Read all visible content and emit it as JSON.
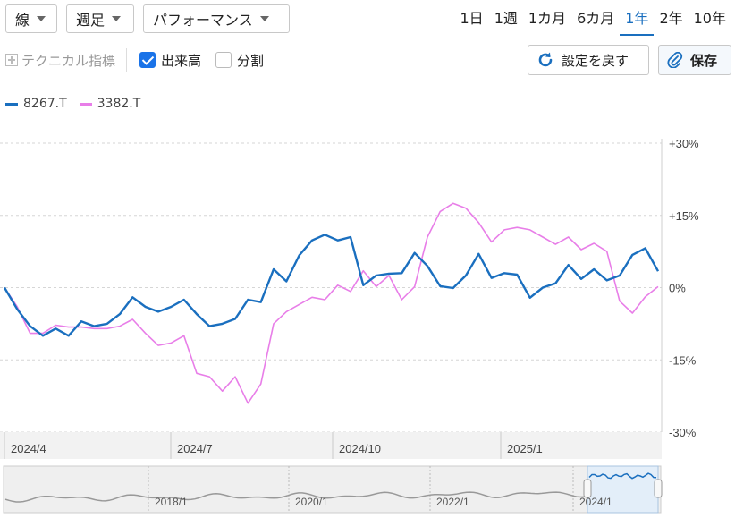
{
  "toolbar": {
    "chart_type": "線",
    "interval": "週足",
    "mode": "パフォーマンス",
    "periods": [
      "1日",
      "1週",
      "1カ月",
      "6カ月",
      "1年",
      "2年",
      "10年"
    ],
    "active_period": "1年"
  },
  "options": {
    "technical_label": "テクニカル指標",
    "volume_label": "出来高",
    "volume_checked": true,
    "split_label": "分割",
    "split_checked": false,
    "reset_label": "設定を戻す",
    "save_label": "保存"
  },
  "colors": {
    "series_8267": "#1a6fbf",
    "series_3382": "#e87ee8",
    "accent": "#1a73e8",
    "grid": "#d0d0d0"
  },
  "chart_data": {
    "type": "line",
    "ylim": [
      -30,
      30
    ],
    "yticks": [
      30,
      15,
      0,
      -15,
      -30
    ],
    "ytick_labels": [
      "+30%",
      "+15%",
      "0%",
      "-15%",
      "-30%"
    ],
    "xtick_labels": [
      "2024/4",
      "2024/7",
      "2024/10",
      "2025/1"
    ],
    "grid": true,
    "legend": "top-left",
    "series": [
      {
        "name": "8267.T",
        "values": [
          0,
          -4.5,
          -8,
          -10,
          -8.5,
          -10,
          -7,
          -8,
          -7.5,
          -5.5,
          -2,
          -4,
          -5,
          -4,
          -2.5,
          -5.5,
          -8,
          -7.5,
          -6.5,
          -2.5,
          -3,
          3.8,
          1.3,
          6.7,
          9.8,
          11,
          9.8,
          10.5,
          0.5,
          2.5,
          2.9,
          3,
          7.2,
          4.5,
          0.3,
          -0.1,
          2.5,
          7,
          2,
          3,
          2.7,
          -2.1,
          0,
          0.9,
          4.7,
          1.8,
          3.8,
          1.5,
          2.5,
          6.8,
          8.2,
          3.4
        ]
      },
      {
        "name": "3382.T",
        "values": [
          0,
          -4,
          -9.5,
          -9.5,
          -7.8,
          -8.2,
          -8.2,
          -8.5,
          -8.5,
          -8,
          -6.6,
          -9.5,
          -12,
          -11.5,
          -10,
          -17.8,
          -18.5,
          -21.5,
          -18.5,
          -24,
          -20,
          -7.5,
          -5,
          -3.5,
          -2,
          -2.5,
          0.5,
          -0.8,
          3.5,
          0.2,
          2.5,
          -2.5,
          0.2,
          10.5,
          15.8,
          17.5,
          16.5,
          13.5,
          9.5,
          12,
          12.5,
          12,
          10.5,
          9,
          10.5,
          7.9,
          9.2,
          7.5,
          -2.8,
          -5.3,
          -1.9,
          0.2
        ]
      }
    ]
  },
  "navigator": {
    "labels": [
      "2018/1",
      "2020/1",
      "2022/1",
      "2024/1"
    ]
  }
}
